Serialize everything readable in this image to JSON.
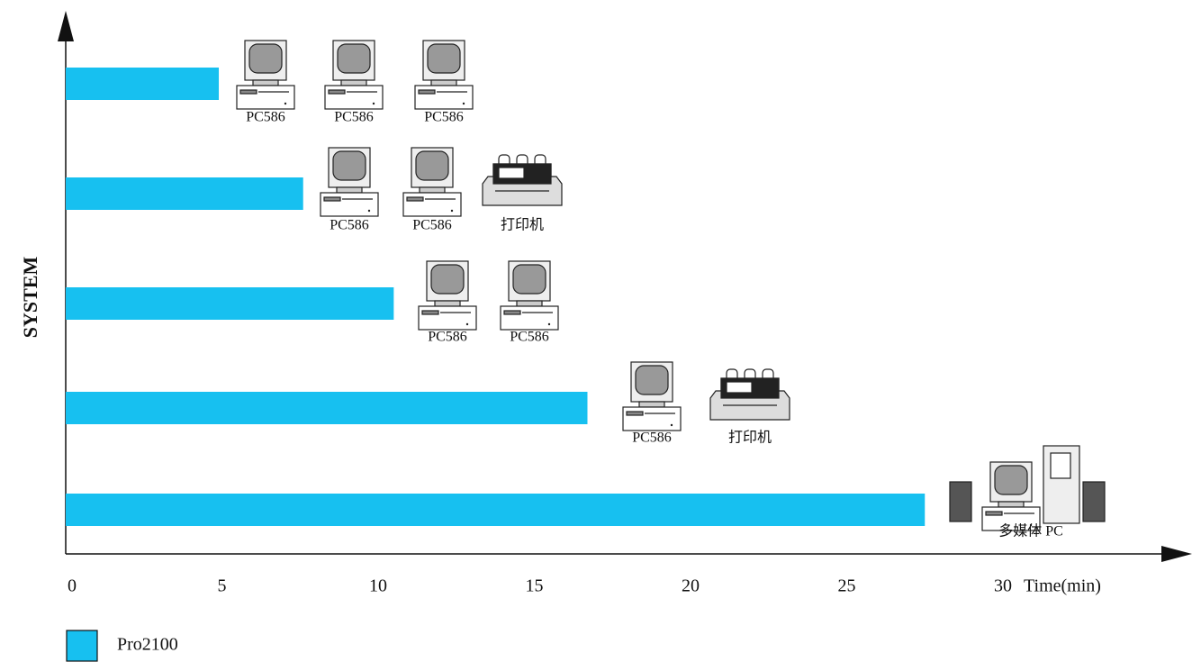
{
  "chart_data": {
    "type": "bar",
    "orientation": "horizontal",
    "x_label": "Time(min)",
    "y_label": "SYSTEM",
    "categories": [
      null,
      null,
      null,
      null,
      null
    ],
    "series": [
      {
        "name": "Pro2100",
        "color": "#17c0f0",
        "values": [
          4.9,
          7.6,
          10.5,
          16.7,
          27.5
        ]
      }
    ],
    "xlim": [
      0,
      35
    ],
    "xticks": [
      0,
      5,
      10,
      15,
      20,
      25,
      30
    ],
    "grid": false,
    "legend": "bottom-left",
    "annotations": [
      [
        "PC586",
        "PC586",
        "PC586"
      ],
      [
        "PC586",
        "PC586",
        "打印机"
      ],
      [
        "PC586",
        "PC586"
      ],
      [
        "PC586",
        "打印机"
      ],
      [
        "多媒体 PC"
      ]
    ]
  }
}
